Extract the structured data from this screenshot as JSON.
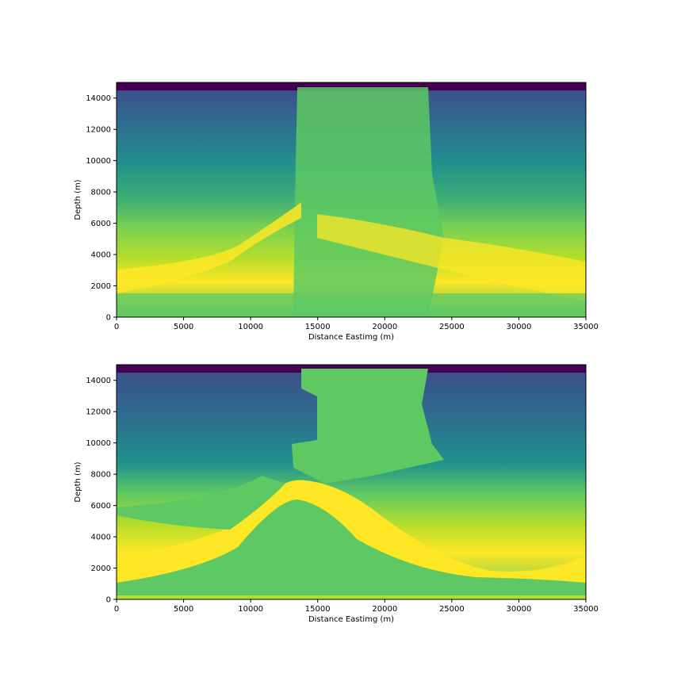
{
  "chart_data": [
    {
      "type": "heatmap",
      "title": "",
      "xlabel": "Distance Eastimg (m)",
      "ylabel": "Depth (m)",
      "xlim": [
        0,
        35000
      ],
      "ylim": [
        0,
        15000
      ],
      "x_ticks": [
        0,
        5000,
        10000,
        15000,
        20000,
        25000,
        30000,
        35000
      ],
      "y_ticks": [
        0,
        2000,
        4000,
        6000,
        8000,
        10000,
        12000,
        14000
      ],
      "x_tick_labels": [
        "0",
        "5000",
        "10000",
        "15000",
        "20000",
        "25000",
        "30000",
        "35000"
      ],
      "y_tick_labels": [
        "0",
        "2000",
        "4000",
        "6000",
        "8000",
        "10000",
        "12000",
        "14000"
      ],
      "colormap": "viridis",
      "grid": false,
      "description_colors": {
        "low": "#440154",
        "mid": "#21918c",
        "high": "#fde725"
      }
    },
    {
      "type": "heatmap",
      "title": "",
      "xlabel": "Distance Eastimg (m)",
      "ylabel": "Depth (m)",
      "xlim": [
        0,
        35000
      ],
      "ylim": [
        0,
        15000
      ],
      "x_ticks": [
        0,
        5000,
        10000,
        15000,
        20000,
        25000,
        30000,
        35000
      ],
      "y_ticks": [
        0,
        2000,
        4000,
        6000,
        8000,
        10000,
        12000,
        14000
      ],
      "x_tick_labels": [
        "0",
        "5000",
        "10000",
        "15000",
        "20000",
        "25000",
        "30000",
        "35000"
      ],
      "y_tick_labels": [
        "0",
        "2000",
        "4000",
        "6000",
        "8000",
        "10000",
        "12000",
        "14000"
      ],
      "colormap": "viridis",
      "grid": false,
      "description_colors": {
        "low": "#440154",
        "mid": "#21918c",
        "high": "#fde725"
      }
    }
  ]
}
